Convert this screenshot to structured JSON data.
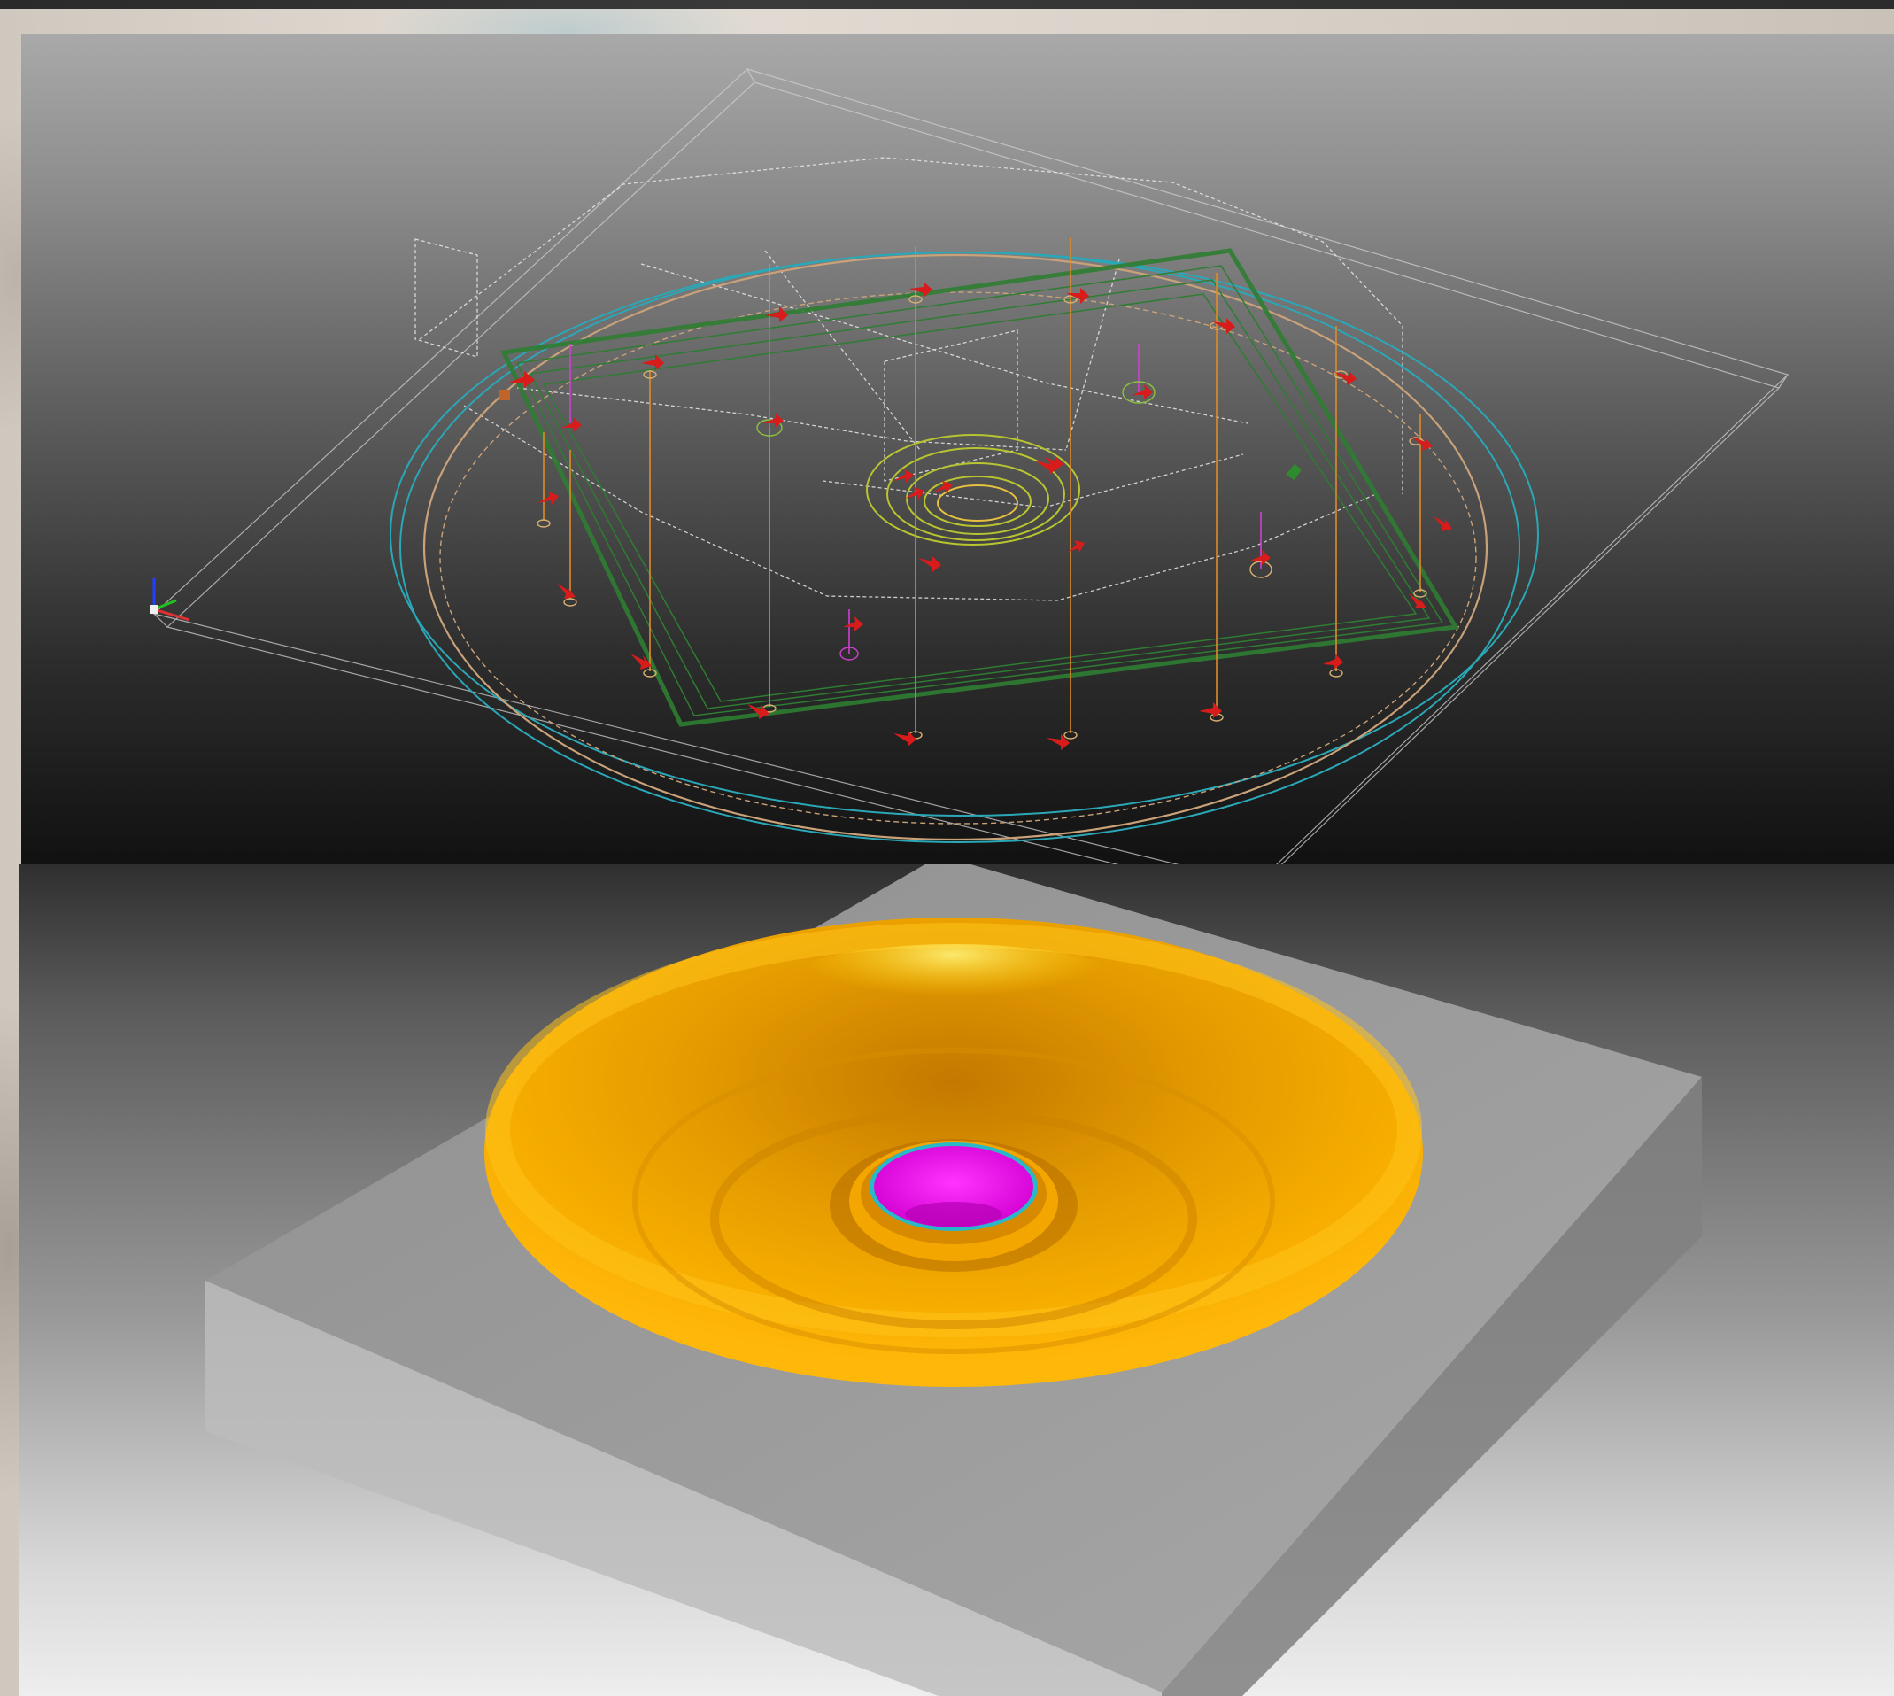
{
  "app": {
    "description_visible_text": []
  },
  "viewports": {
    "wireframe": {
      "label": ""
    },
    "shaded": {
      "label": ""
    }
  },
  "colors": {
    "toolpath_green": "#2e7d32",
    "tool_marker_red": "#d81b1b",
    "circle_cyan": "#2aa8b8",
    "circle_tan": "#c9a27a",
    "stock_wire": "#d8d8d8",
    "part_orange": "#f5a800",
    "part_magenta": "#ee00ee",
    "stock_grey": "#a6a6a6",
    "axis_x": "#e03030",
    "axis_y": "#20c020",
    "axis_z": "#2040ff"
  },
  "icons": {
    "triad": "xyz-axis-triad-icon",
    "tool_arrow": "tool-direction-arrow-icon"
  }
}
